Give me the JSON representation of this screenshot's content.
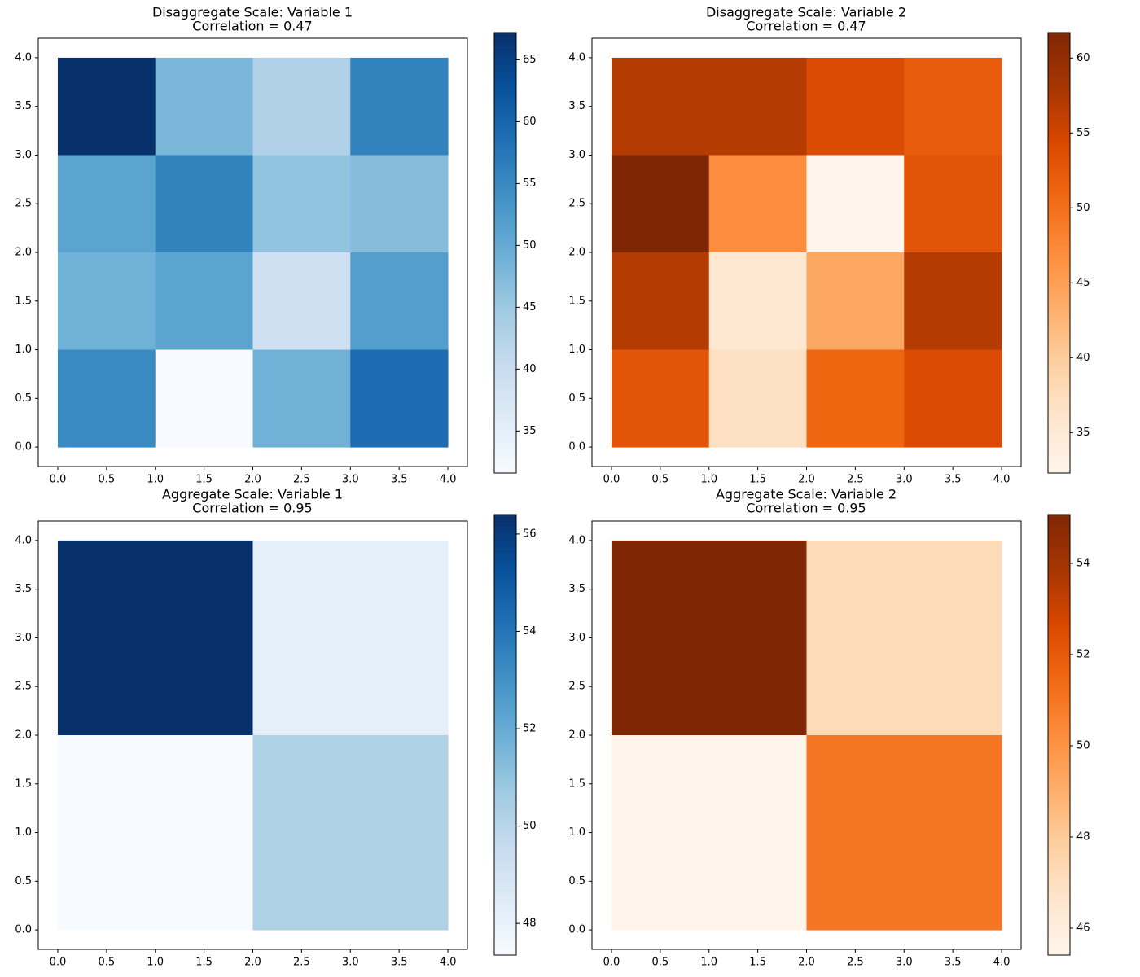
{
  "chart_data": [
    {
      "type": "heatmap",
      "title": "Disaggregate Scale: Variable 1",
      "subtitle": "Correlation = 0.47",
      "x_edges": [
        0,
        1,
        2,
        3,
        4
      ],
      "y_edges": [
        4,
        3,
        2,
        1,
        0
      ],
      "rows": [
        [
          67.2,
          48,
          43,
          56
        ],
        [
          51,
          56,
          46,
          47
        ],
        [
          49,
          51,
          39,
          52
        ],
        [
          55,
          31.6,
          49,
          59
        ]
      ],
      "xlim": [
        -0.2,
        4.2
      ],
      "ylim": [
        -0.2,
        4.2
      ],
      "xticks": [
        {
          "value": 0,
          "label": "0.0"
        },
        {
          "value": 0.5,
          "label": "0.5"
        },
        {
          "value": 1,
          "label": "1.0"
        },
        {
          "value": 1.5,
          "label": "1.5"
        },
        {
          "value": 2,
          "label": "2.0"
        },
        {
          "value": 2.5,
          "label": "2.5"
        },
        {
          "value": 3,
          "label": "3.0"
        },
        {
          "value": 3.5,
          "label": "3.5"
        },
        {
          "value": 4,
          "label": "4.0"
        }
      ],
      "yticks": [
        {
          "value": 0,
          "label": "0.0"
        },
        {
          "value": 0.5,
          "label": "0.5"
        },
        {
          "value": 1,
          "label": "1.0"
        },
        {
          "value": 1.5,
          "label": "1.5"
        },
        {
          "value": 2,
          "label": "2.0"
        },
        {
          "value": 2.5,
          "label": "2.5"
        },
        {
          "value": 3,
          "label": "3.0"
        },
        {
          "value": 3.5,
          "label": "3.5"
        },
        {
          "value": 4,
          "label": "4.0"
        }
      ],
      "clim": [
        31.6,
        67.2
      ],
      "cticks": [
        35,
        40,
        45,
        50,
        55,
        60,
        65
      ],
      "colormap": [
        "#f7fbff",
        "#deebf7",
        "#c6dbef",
        "#9ecae1",
        "#6baed6",
        "#4292c6",
        "#2171b5",
        "#08519c",
        "#08306b"
      ]
    },
    {
      "type": "heatmap",
      "title": "Disaggregate Scale: Variable 2",
      "subtitle": "Correlation = 0.47",
      "x_edges": [
        0,
        1,
        2,
        3,
        4
      ],
      "y_edges": [
        4,
        3,
        2,
        1,
        0
      ],
      "rows": [
        [
          57,
          57,
          54,
          52
        ],
        [
          61.7,
          47,
          32.3,
          53
        ],
        [
          57,
          35.5,
          44,
          57
        ],
        [
          53,
          37,
          51,
          54
        ]
      ],
      "xlim": [
        -0.2,
        4.2
      ],
      "ylim": [
        -0.2,
        4.2
      ],
      "xticks": [
        {
          "value": 0,
          "label": "0.0"
        },
        {
          "value": 0.5,
          "label": "0.5"
        },
        {
          "value": 1,
          "label": "1.0"
        },
        {
          "value": 1.5,
          "label": "1.5"
        },
        {
          "value": 2,
          "label": "2.0"
        },
        {
          "value": 2.5,
          "label": "2.5"
        },
        {
          "value": 3,
          "label": "3.0"
        },
        {
          "value": 3.5,
          "label": "3.5"
        },
        {
          "value": 4,
          "label": "4.0"
        }
      ],
      "yticks": [
        {
          "value": 0,
          "label": "0.0"
        },
        {
          "value": 0.5,
          "label": "0.5"
        },
        {
          "value": 1,
          "label": "1.0"
        },
        {
          "value": 1.5,
          "label": "1.5"
        },
        {
          "value": 2,
          "label": "2.0"
        },
        {
          "value": 2.5,
          "label": "2.5"
        },
        {
          "value": 3,
          "label": "3.0"
        },
        {
          "value": 3.5,
          "label": "3.5"
        },
        {
          "value": 4,
          "label": "4.0"
        }
      ],
      "clim": [
        32.3,
        61.7
      ],
      "cticks": [
        35,
        40,
        45,
        50,
        55,
        60
      ],
      "colormap": [
        "#fff5eb",
        "#fee6ce",
        "#fdd0a2",
        "#fdae6b",
        "#fd8d3c",
        "#f16913",
        "#d94801",
        "#a63603",
        "#7f2704"
      ]
    },
    {
      "type": "heatmap",
      "title": "Aggregate Scale: Variable 1",
      "subtitle": "Correlation = 0.95",
      "x_edges": [
        0,
        2,
        4
      ],
      "y_edges": [
        4,
        2,
        0
      ],
      "rows": [
        [
          56.4,
          48.2
        ],
        [
          47.35,
          50.3
        ]
      ],
      "xlim": [
        -0.2,
        4.2
      ],
      "ylim": [
        -0.2,
        4.2
      ],
      "xticks": [
        {
          "value": 0,
          "label": "0.0"
        },
        {
          "value": 0.5,
          "label": "0.5"
        },
        {
          "value": 1,
          "label": "1.0"
        },
        {
          "value": 1.5,
          "label": "1.5"
        },
        {
          "value": 2,
          "label": "2.0"
        },
        {
          "value": 2.5,
          "label": "2.5"
        },
        {
          "value": 3,
          "label": "3.0"
        },
        {
          "value": 3.5,
          "label": "3.5"
        },
        {
          "value": 4,
          "label": "4.0"
        }
      ],
      "yticks": [
        {
          "value": 0,
          "label": "0.0"
        },
        {
          "value": 0.5,
          "label": "0.5"
        },
        {
          "value": 1,
          "label": "1.0"
        },
        {
          "value": 1.5,
          "label": "1.5"
        },
        {
          "value": 2,
          "label": "2.0"
        },
        {
          "value": 2.5,
          "label": "2.5"
        },
        {
          "value": 3,
          "label": "3.0"
        },
        {
          "value": 3.5,
          "label": "3.5"
        },
        {
          "value": 4,
          "label": "4.0"
        }
      ],
      "clim": [
        47.35,
        56.4
      ],
      "cticks": [
        48,
        50,
        52,
        54,
        56
      ],
      "colormap": [
        "#f7fbff",
        "#deebf7",
        "#c6dbef",
        "#9ecae1",
        "#6baed6",
        "#4292c6",
        "#2171b5",
        "#08519c",
        "#08306b"
      ]
    },
    {
      "type": "heatmap",
      "title": "Aggregate Scale: Variable 2",
      "subtitle": "Correlation = 0.95",
      "x_edges": [
        0,
        2,
        4
      ],
      "y_edges": [
        4,
        2,
        0
      ],
      "rows": [
        [
          55.07,
          47.2
        ],
        [
          45.41,
          51
        ]
      ],
      "xlim": [
        -0.2,
        4.2
      ],
      "ylim": [
        -0.2,
        4.2
      ],
      "xticks": [
        {
          "value": 0,
          "label": "0.0"
        },
        {
          "value": 0.5,
          "label": "0.5"
        },
        {
          "value": 1,
          "label": "1.0"
        },
        {
          "value": 1.5,
          "label": "1.5"
        },
        {
          "value": 2,
          "label": "2.0"
        },
        {
          "value": 2.5,
          "label": "2.5"
        },
        {
          "value": 3,
          "label": "3.0"
        },
        {
          "value": 3.5,
          "label": "3.5"
        },
        {
          "value": 4,
          "label": "4.0"
        }
      ],
      "yticks": [
        {
          "value": 0,
          "label": "0.0"
        },
        {
          "value": 0.5,
          "label": "0.5"
        },
        {
          "value": 1,
          "label": "1.0"
        },
        {
          "value": 1.5,
          "label": "1.5"
        },
        {
          "value": 2,
          "label": "2.0"
        },
        {
          "value": 2.5,
          "label": "2.5"
        },
        {
          "value": 3,
          "label": "3.0"
        },
        {
          "value": 3.5,
          "label": "3.5"
        },
        {
          "value": 4,
          "label": "4.0"
        }
      ],
      "clim": [
        45.41,
        55.07
      ],
      "cticks": [
        46,
        48,
        50,
        52,
        54
      ],
      "colormap": [
        "#fff5eb",
        "#fee6ce",
        "#fdd0a2",
        "#fdae6b",
        "#fd8d3c",
        "#f16913",
        "#d94801",
        "#a63603",
        "#7f2704"
      ]
    }
  ]
}
